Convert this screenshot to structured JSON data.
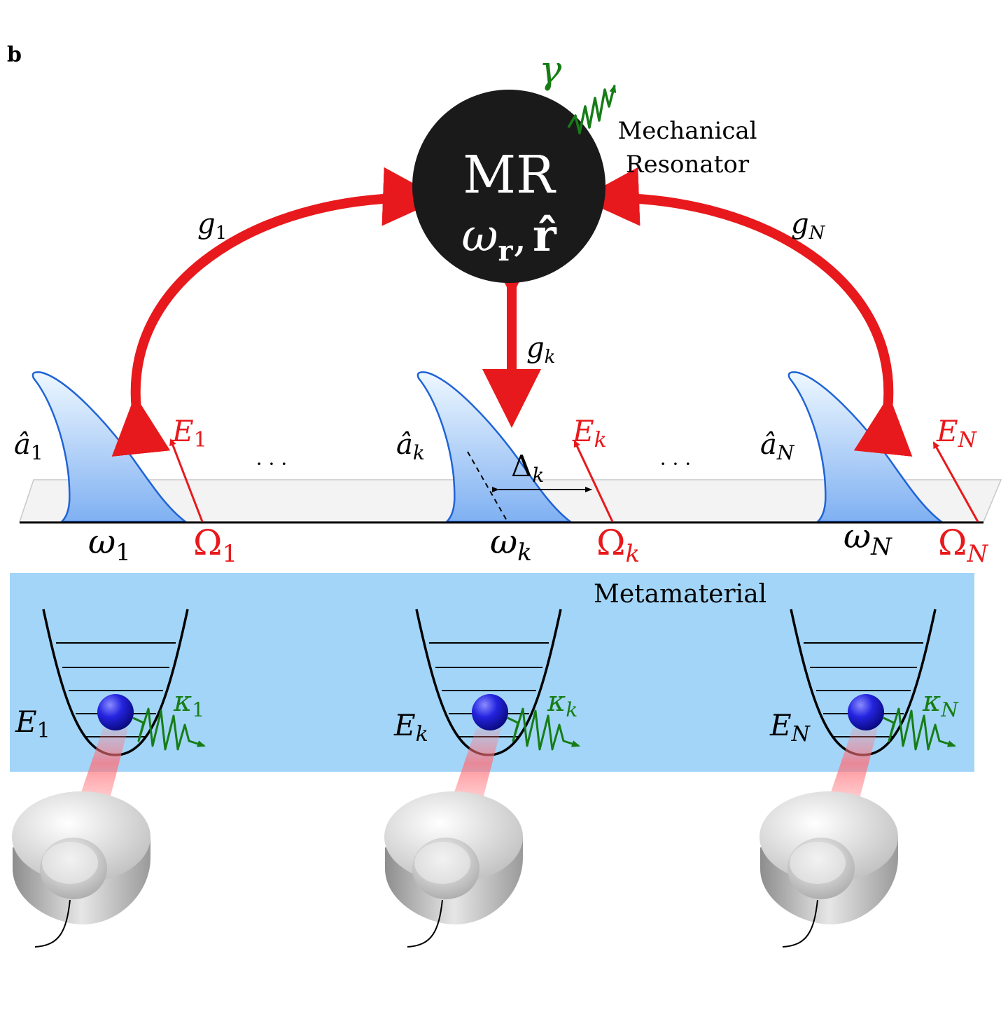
{
  "panel_label": "b",
  "resonator": {
    "title": "MR",
    "symbol_omega": "ω",
    "symbol_omega_sub": "r",
    "comma": ",",
    "symbol_r": "r̂",
    "description_line1": "Mechanical",
    "description_line2": "Resonator",
    "damping": "γ"
  },
  "couplings": {
    "g": "g",
    "left_sub": "1",
    "center_sub": "k",
    "right_sub": "N"
  },
  "modes": [
    {
      "a": "â",
      "a_sub": "1",
      "w": "ω",
      "w_sub": "1",
      "Om": "Ω",
      "Om_sub": "1",
      "E": "E",
      "E_sub": "1"
    },
    {
      "a": "â",
      "a_sub": "k",
      "w": "ω",
      "w_sub": "k",
      "Om": "Ω",
      "Om_sub": "k",
      "E": "E",
      "E_sub": "k"
    },
    {
      "a": "â",
      "a_sub": "N",
      "w": "ω",
      "w_sub": "N",
      "Om": "Ω",
      "Om_sub": "N",
      "E": "E",
      "E_sub": "N"
    }
  ],
  "detuning": {
    "symbol": "Δ",
    "sub": "k"
  },
  "ellipsis": "· · ·",
  "metamaterial_label": "Metamaterial",
  "emitters": [
    {
      "E": "E",
      "E_sub": "1",
      "kappa": "κ",
      "kappa_sub": "1"
    },
    {
      "E": "E",
      "E_sub": "k",
      "kappa": "κ",
      "kappa_sub": "k"
    },
    {
      "E": "E",
      "E_sub": "N",
      "kappa": "κ",
      "kappa_sub": "N"
    }
  ],
  "colors": {
    "coupling_red": "#e8191c",
    "damping_green": "#167d16",
    "metamaterial_blue": "#a3d5f8",
    "peak_outline": "#1f63d6",
    "sphere_blue": "#1212c8"
  }
}
